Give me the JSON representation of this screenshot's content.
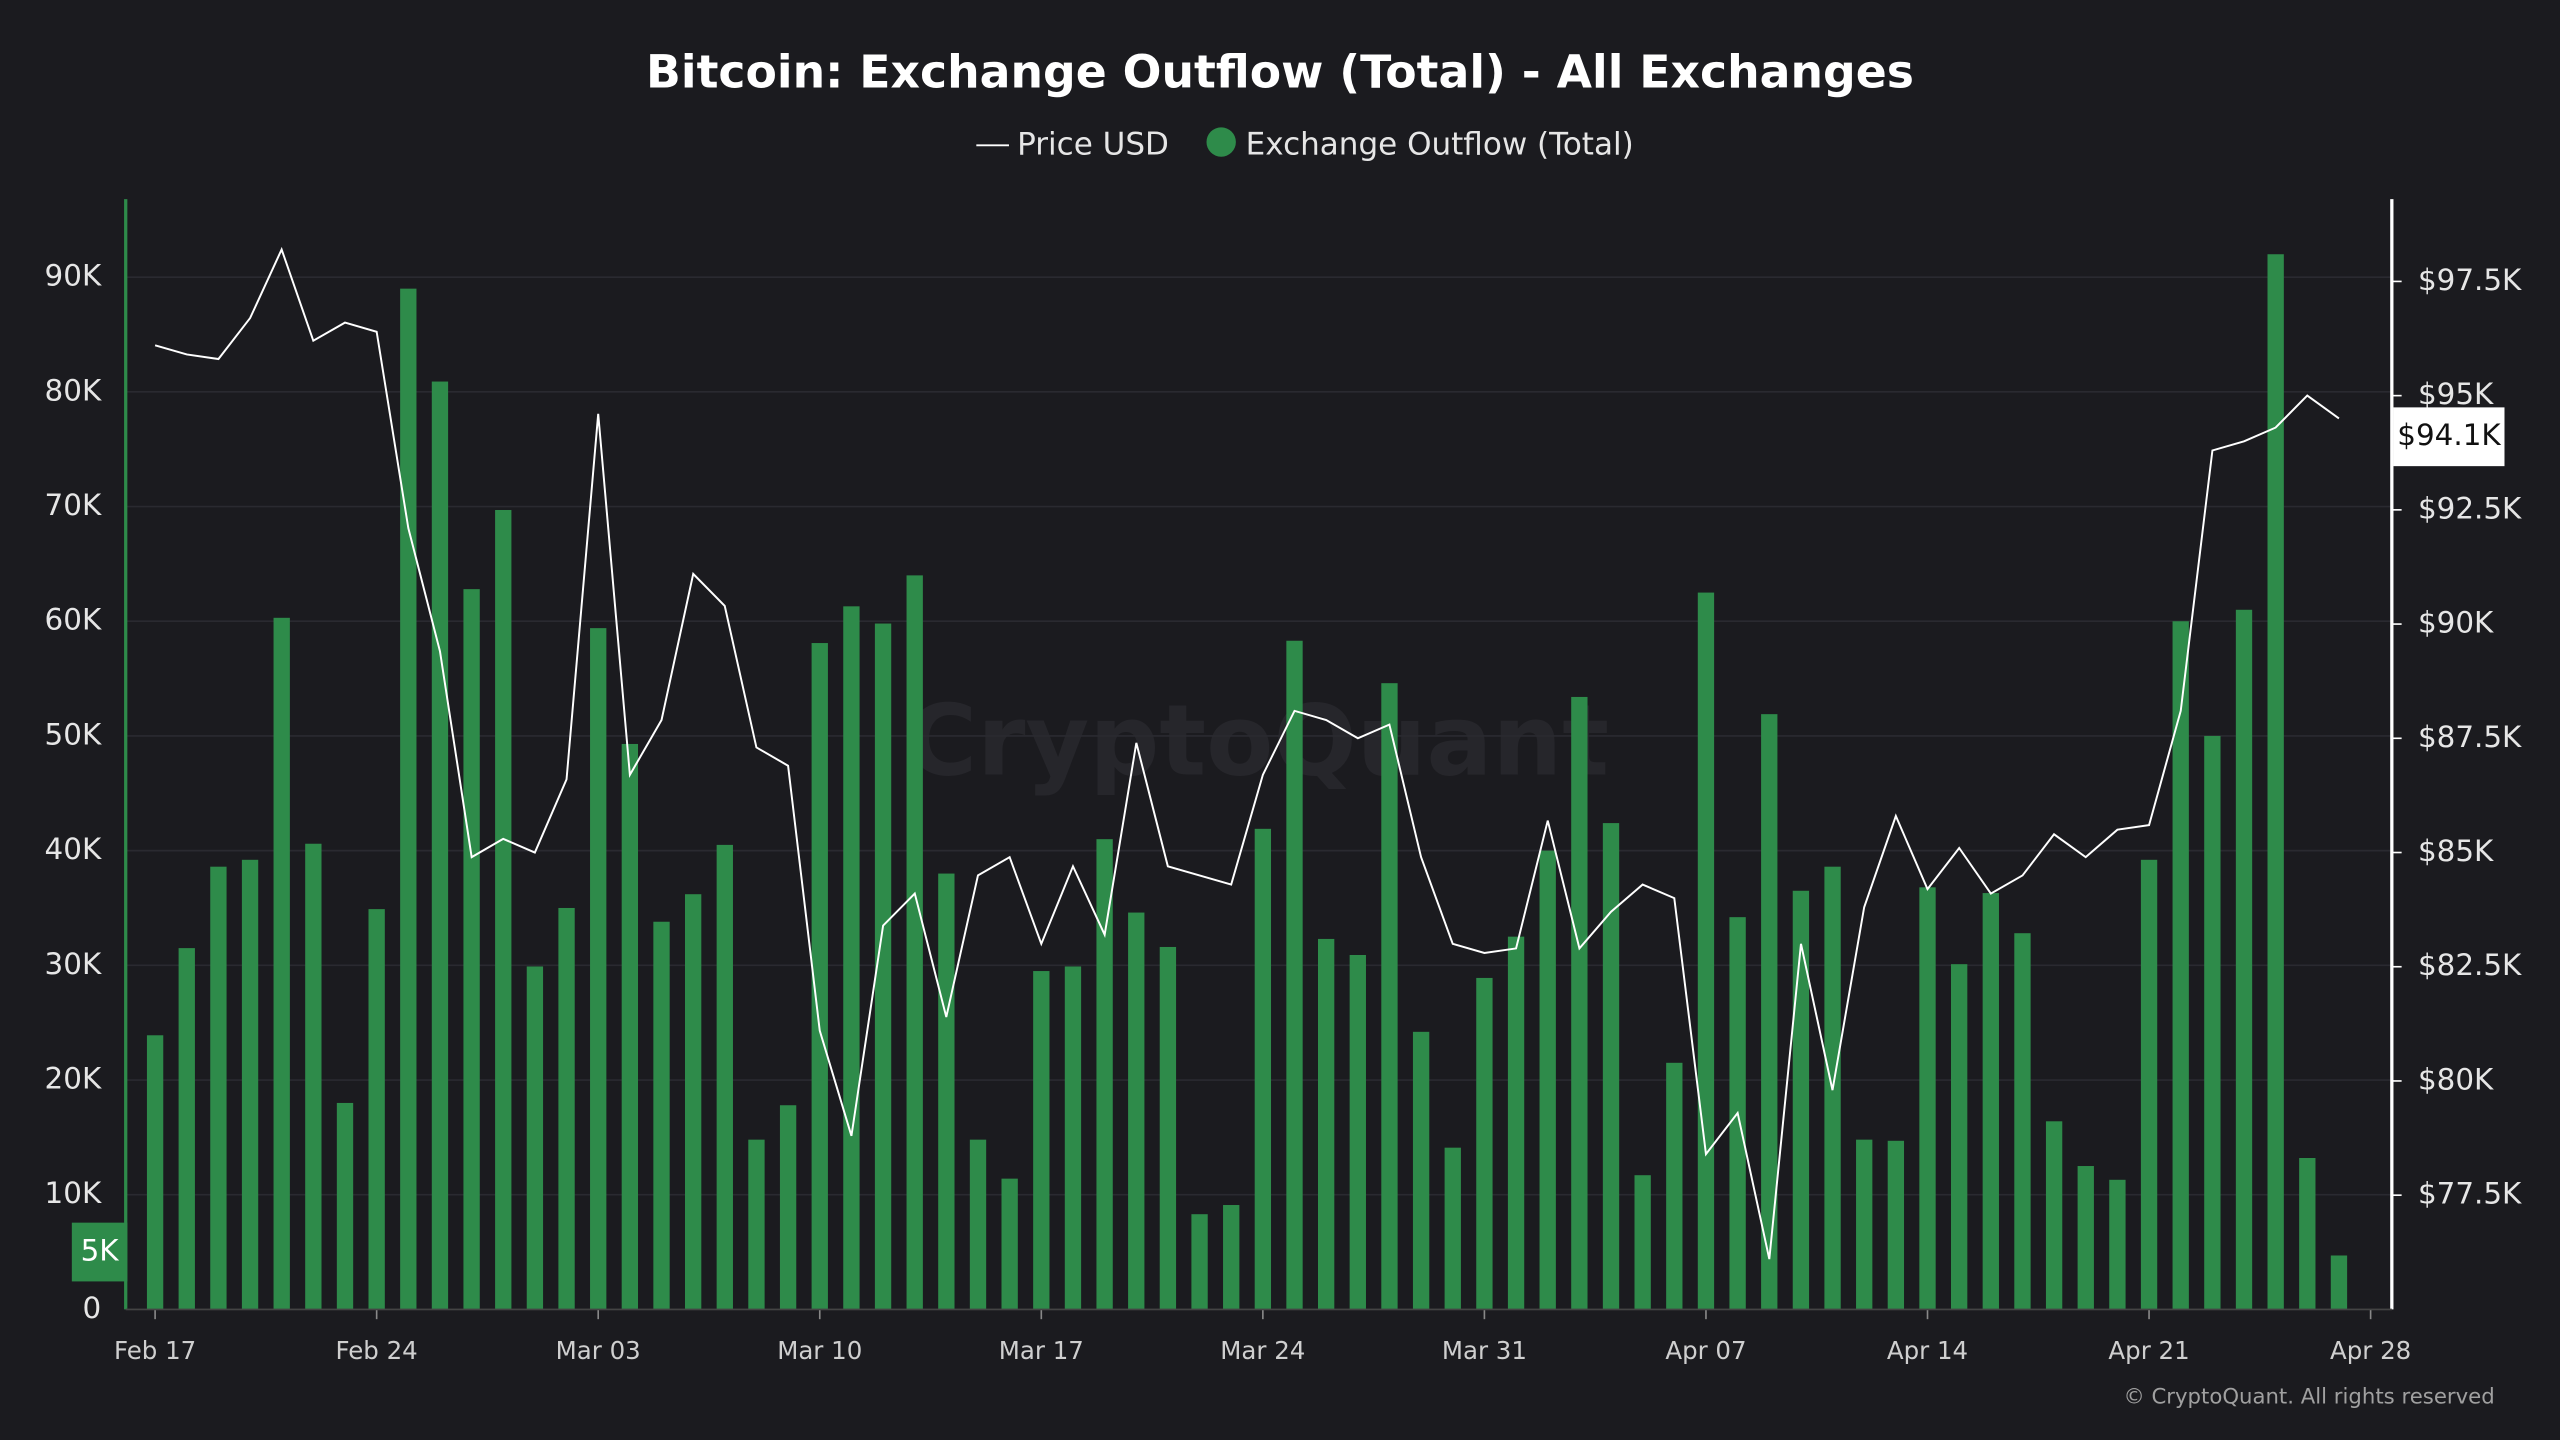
{
  "chart_data": {
    "type": "bar",
    "title": "Bitcoin: Exchange Outflow (Total) - All Exchanges",
    "watermark": "CryptoQuant",
    "footer": "© CryptoQuant. All rights reserved",
    "xticks": [
      {
        "value": 0,
        "label": "Feb 17"
      },
      {
        "value": 7,
        "label": "Feb 24"
      },
      {
        "value": 14,
        "label": "Mar 03"
      },
      {
        "value": 21,
        "label": "Mar 10"
      },
      {
        "value": 28,
        "label": "Mar 17"
      },
      {
        "value": 35,
        "label": "Mar 24"
      },
      {
        "value": 42,
        "label": "Mar 31"
      },
      {
        "value": 49,
        "label": "Apr 07"
      },
      {
        "value": 56,
        "label": "Apr 14"
      },
      {
        "value": 63,
        "label": "Apr 21"
      },
      {
        "value": 70,
        "label": "Apr 28"
      }
    ],
    "ylim": [
      0,
      96.8
    ],
    "yticks": [
      0,
      {
        "value": 10,
        "label": "10K"
      },
      {
        "value": 20,
        "label": "20K"
      },
      {
        "value": 30,
        "label": "30K"
      },
      {
        "value": 40,
        "label": "40K"
      },
      {
        "value": 50,
        "label": "50K"
      },
      {
        "value": 60,
        "label": "60K"
      },
      {
        "value": 70,
        "label": "70K"
      },
      {
        "value": 80,
        "label": "80K"
      },
      {
        "value": 90,
        "label": "90K"
      }
    ],
    "y2lim": [
      75,
      99.3
    ],
    "y2ticks": [
      {
        "value": 77.5,
        "label": "$77.5K"
      },
      {
        "value": 80,
        "label": "$80K"
      },
      {
        "value": 82.5,
        "label": "$82.5K"
      },
      {
        "value": 85,
        "label": "$85K"
      },
      {
        "value": 87.5,
        "label": "$87.5K"
      },
      {
        "value": 90,
        "label": "$90K"
      },
      {
        "value": 92.5,
        "label": "$92.5K"
      },
      {
        "value": 95,
        "label": "$95K"
      },
      {
        "value": 97.5,
        "label": "$97.5K"
      }
    ],
    "grid": true,
    "crosshair": {
      "value": 5,
      "label": "5K"
    },
    "last_price": {
      "value": 94.1,
      "label": "$94.1K"
    },
    "series": [
      {
        "name": "Price USD",
        "type": "line",
        "color": "#ffffff",
        "axis": "y2",
        "values": [
          96.1,
          95.9,
          95.8,
          96.7,
          98.2,
          96.2,
          96.6,
          96.4,
          92.1,
          89.4,
          84.9,
          85.3,
          85.0,
          86.6,
          94.6,
          86.7,
          87.9,
          91.1,
          90.4,
          87.3,
          86.9,
          81.1,
          78.8,
          83.4,
          84.1,
          81.4,
          84.5,
          84.9,
          83.0,
          84.7,
          83.2,
          87.4,
          84.7,
          84.5,
          84.3,
          86.7,
          88.1,
          87.9,
          87.5,
          87.8,
          84.9,
          83.0,
          82.8,
          82.9,
          85.7,
          82.9,
          83.7,
          84.3,
          84.0,
          78.4,
          79.3,
          76.1,
          83.0,
          79.8,
          83.8,
          85.8,
          84.2,
          85.1,
          84.1,
          84.5,
          85.4,
          84.9,
          85.5,
          85.6,
          88.1,
          93.8,
          94.0,
          94.3,
          95.0,
          94.5
        ]
      },
      {
        "name": "Exchange Outflow (Total)",
        "type": "bar",
        "color": "#2e8b4a",
        "values": [
          23.9,
          31.5,
          38.6,
          39.2,
          60.3,
          40.6,
          18,
          34.9,
          89,
          80.9,
          62.8,
          69.7,
          29.9,
          35,
          59.4,
          49.3,
          33.8,
          36.2,
          40.5,
          14.8,
          17.8,
          58.1,
          61.3,
          59.8,
          64,
          38,
          14.8,
          11.4,
          29.5,
          29.9,
          41,
          34.6,
          31.6,
          8.3,
          9.1,
          41.9,
          58.3,
          32.3,
          30.9,
          54.6,
          24.2,
          14.1,
          28.9,
          32.5,
          40,
          53.4,
          42.4,
          11.7,
          21.5,
          62.5,
          34.2,
          51.9,
          36.5,
          38.6,
          14.8,
          14.7,
          36.8,
          30.1,
          36.3,
          32.8,
          16.4,
          12.5,
          11.3,
          39.2,
          60,
          50,
          61,
          92,
          13.2,
          4.7
        ]
      }
    ]
  }
}
